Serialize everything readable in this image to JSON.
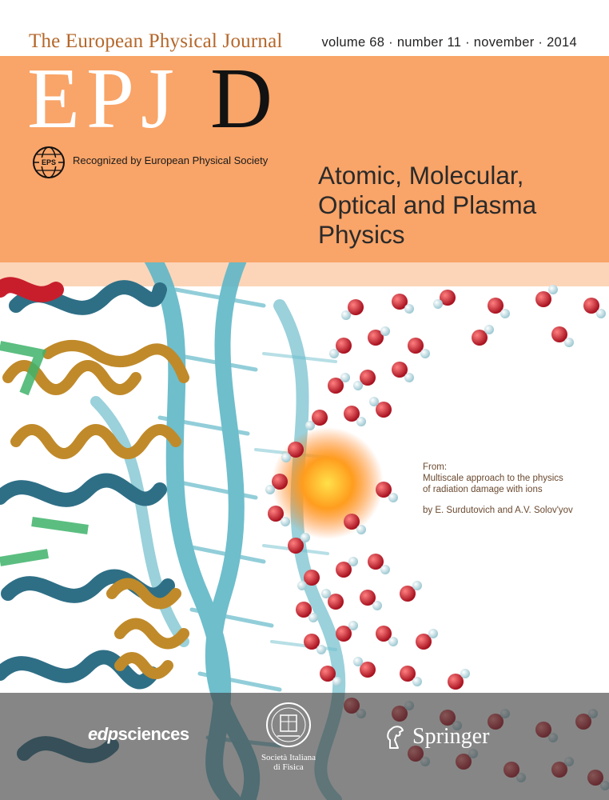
{
  "header": {
    "journal_name": "The European Physical Journal",
    "issue_info": "volume 68 · number 11 · november · 2014"
  },
  "title": {
    "epj": "EPJ",
    "letter": "D"
  },
  "society": {
    "logo_text": "EPS",
    "recognition": "Recognized by European Physical Society"
  },
  "subject": {
    "line1": "Atomic, Molecular,",
    "line2": "Optical and Plasma",
    "line3": "Physics"
  },
  "credit": {
    "from": "From:",
    "title_line1": "Multiscale approach to the physics",
    "title_line2": "of radiation damage with ions",
    "authors": "by E. Surdutovich and A.V. Solov'yov"
  },
  "publishers": {
    "edp_prefix": "edp",
    "edp_suffix": "sciences",
    "sif_line1": "Società Italiana",
    "sif_line2": "di Fisica",
    "springer": "Springer"
  },
  "colors": {
    "orange_band": "#f9a468",
    "journal_name": "#b5672a",
    "dna_ribbon": "#5fb7c7",
    "protein_gold": "#c08a2a",
    "protein_teal": "#2e6f86",
    "water_red": "#c8313e"
  }
}
